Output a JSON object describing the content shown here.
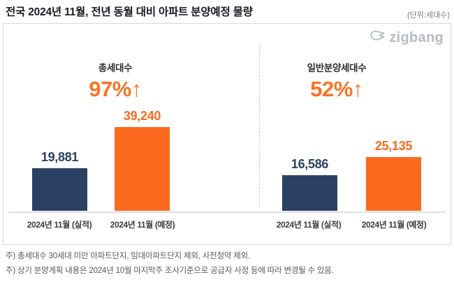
{
  "header": {
    "title": "전국 2024년 11월, 전년 동월 대비 아파트 분양예정 물량",
    "unit_note": "(단위:세대수)"
  },
  "logo": {
    "text": "zigbang",
    "icon": "zigbang-origami-mark"
  },
  "colors": {
    "navy": "#2b4164",
    "orange": "#fb6a1e",
    "percent": "#f97326",
    "logo_gray": "#b5bbc4"
  },
  "chart_data": [
    {
      "type": "bar",
      "title": "총세대수",
      "annotation": "97%↑",
      "categories": [
        "2024년 11월 (실적)",
        "2024년 11월 (예정)"
      ],
      "values": [
        19881,
        39240
      ],
      "labels": [
        "19,881",
        "39,240"
      ],
      "bar_colors": [
        "#2b4164",
        "#fb6a1e"
      ],
      "ylabel": "세대수",
      "grid": false,
      "legend": "none"
    },
    {
      "type": "bar",
      "title": "일반분양세대수",
      "annotation": "52%↑",
      "categories": [
        "2024년 11월 (실적)",
        "2024년 11월 (예정)"
      ],
      "values": [
        16586,
        25135
      ],
      "labels": [
        "16,586",
        "25,135"
      ],
      "bar_colors": [
        "#2b4164",
        "#fb6a1e"
      ],
      "ylabel": "세대수",
      "grid": false,
      "legend": "none"
    }
  ],
  "footnotes": [
    "주) 총세대수 30세대 미만 아파트단지, 임대아파트단지 제외, 사전청약 제외.",
    "주) 상기 분양계획 내용은 2024년 10월 마지막주 조사기준으로 공급자 사정 등에 따라 변경될 수 있음."
  ]
}
